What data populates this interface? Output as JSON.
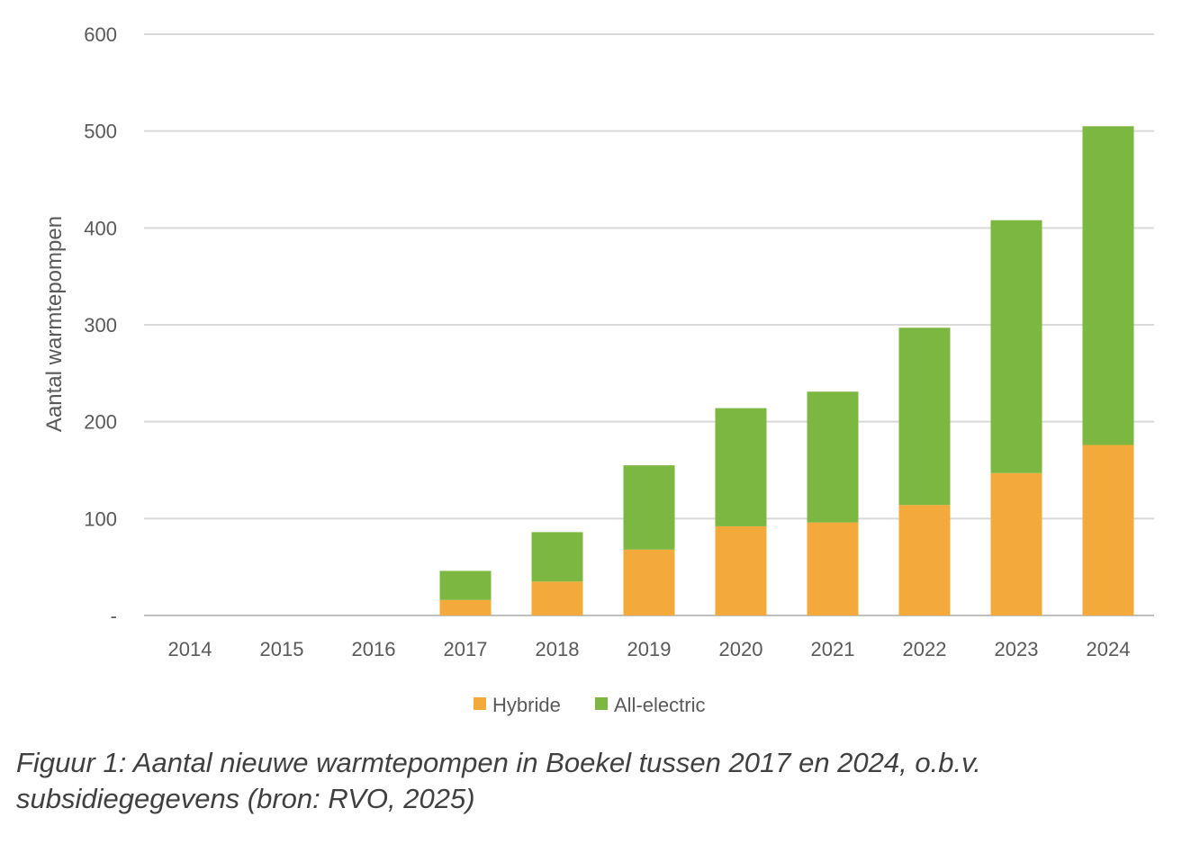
{
  "chart_data": {
    "type": "bar",
    "stacked": true,
    "categories": [
      "2014",
      "2015",
      "2016",
      "2017",
      "2018",
      "2019",
      "2020",
      "2021",
      "2022",
      "2023",
      "2024"
    ],
    "series": [
      {
        "name": "Hybride",
        "color": "#F4A93B",
        "values": [
          0,
          0,
          0,
          16,
          35,
          68,
          92,
          96,
          114,
          147,
          176
        ]
      },
      {
        "name": "All-electric",
        "color": "#7CB742",
        "values": [
          0,
          0,
          0,
          30,
          51,
          87,
          122,
          135,
          183,
          261,
          329
        ]
      }
    ],
    "ylabel": "Aantal warmtepompen",
    "xlabel": "",
    "ylim": [
      0,
      600
    ],
    "yticks": [
      {
        "value": 0,
        "label": "-"
      },
      {
        "value": 100,
        "label": "100"
      },
      {
        "value": 200,
        "label": "200"
      },
      {
        "value": 300,
        "label": "300"
      },
      {
        "value": 400,
        "label": "400"
      },
      {
        "value": 500,
        "label": "500"
      },
      {
        "value": 600,
        "label": "600"
      }
    ],
    "grid": true,
    "legend_position": "bottom-center"
  },
  "caption": "Figuur 1: Aantal nieuwe warmtepompen in Boekel tussen 2017 en 2024, o.b.v. subsidiegegevens (bron: RVO, 2025)",
  "colors": {
    "gridline": "#D9D9D9",
    "text": "#595959",
    "axis": "#BFBFBF"
  }
}
